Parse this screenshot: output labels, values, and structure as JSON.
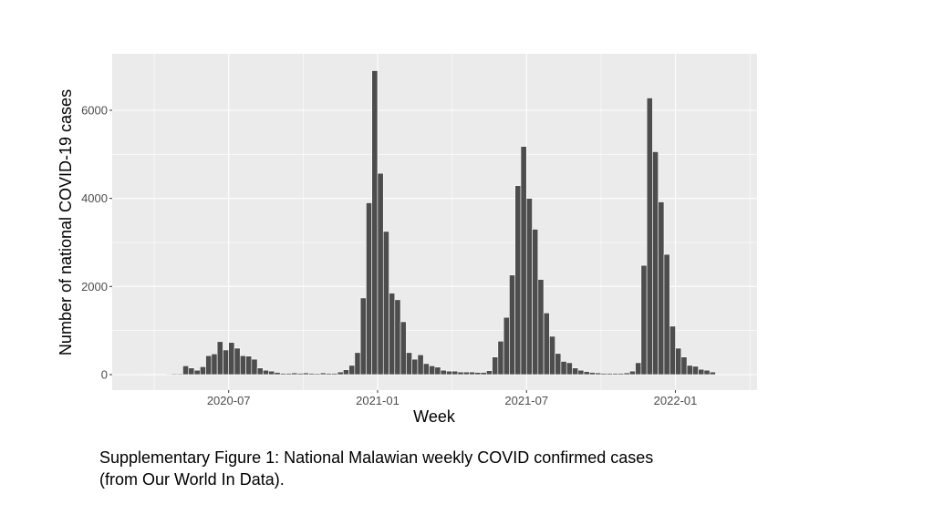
{
  "chart_data": {
    "type": "bar",
    "xlabel": "Week",
    "ylabel": "Number of national COVID-19 cases",
    "ylim": [
      -150,
      7200
    ],
    "yticks": [
      0,
      2000,
      4000,
      6000
    ],
    "ytick_labels": [
      "0",
      "2000",
      "4000",
      "6000"
    ],
    "xticks": [
      {
        "label": "2020-07",
        "week": 15
      },
      {
        "label": "2021-01",
        "week": 41
      },
      {
        "label": "2021-07",
        "week": 67
      },
      {
        "label": "2022-01",
        "week": 93
      }
    ],
    "grid": true,
    "legend": "none",
    "colors": {
      "bar": "#4d4d4d",
      "bar_edge": "#ffffff",
      "panel": "#ebebeb",
      "grid": "#ffffff"
    },
    "start_week": "2020-04-05",
    "values": [
      5,
      5,
      8,
      10,
      15,
      20,
      20,
      200,
      150,
      100,
      180,
      430,
      470,
      750,
      560,
      730,
      600,
      430,
      420,
      350,
      150,
      100,
      80,
      50,
      30,
      30,
      40,
      30,
      40,
      30,
      25,
      40,
      30,
      30,
      60,
      110,
      210,
      500,
      1740,
      3900,
      6900,
      4570,
      3250,
      1850,
      1700,
      1200,
      500,
      350,
      450,
      250,
      200,
      170,
      100,
      80,
      80,
      60,
      60,
      60,
      50,
      50,
      90,
      400,
      760,
      1300,
      2260,
      4290,
      5180,
      4000,
      3300,
      2160,
      1400,
      870,
      480,
      300,
      270,
      150,
      100,
      70,
      50,
      40,
      30,
      30,
      30,
      30,
      40,
      80,
      270,
      2480,
      6280,
      5060,
      3920,
      2730,
      1100,
      600,
      400,
      210,
      190,
      120,
      100,
      60,
      10
    ]
  },
  "caption": "Supplementary Figure 1: National Malawian weekly COVID confirmed cases (from Our World In Data)."
}
